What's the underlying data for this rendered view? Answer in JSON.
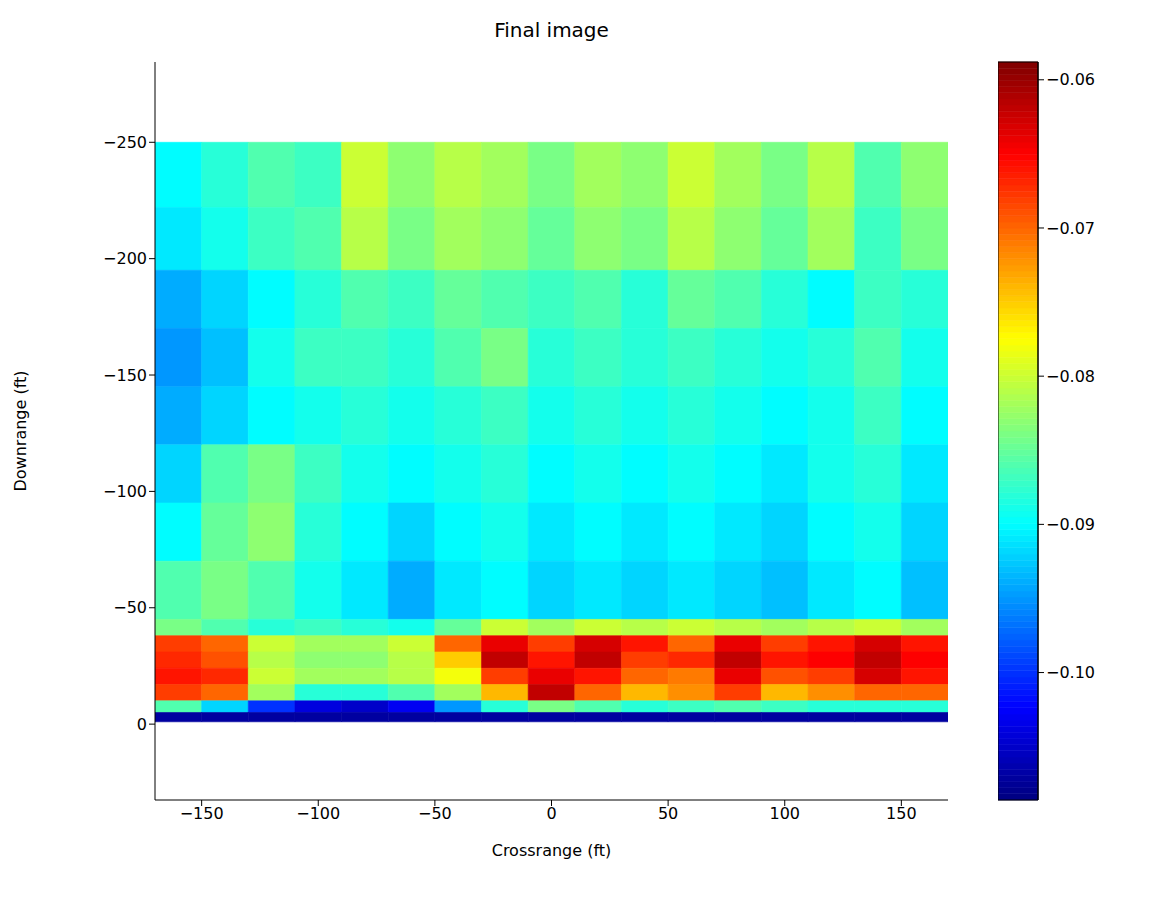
{
  "chart_data": {
    "type": "heatmap",
    "title": "Final image",
    "x_label": "Crossrange (ft)",
    "y_label": "Downrange (ft)",
    "xlim": [
      -170,
      170
    ],
    "ylim": [
      32.6,
      -284.5
    ],
    "xticks": [
      {
        "value": -150,
        "label": "−150"
      },
      {
        "value": -100,
        "label": "−100"
      },
      {
        "value": -50,
        "label": "−50"
      },
      0,
      50,
      100,
      150
    ],
    "yticks": [
      {
        "value": -250,
        "label": "−250"
      },
      {
        "value": -200,
        "label": "−200"
      },
      {
        "value": -150,
        "label": "−150"
      },
      {
        "value": -100,
        "label": "−100"
      },
      {
        "value": -50,
        "label": "−50"
      },
      0
    ],
    "x_edges": [
      -170,
      -150,
      -130,
      -110,
      -90,
      -70,
      -50,
      -30,
      -10,
      10,
      30,
      50,
      70,
      90,
      110,
      130,
      150,
      170
    ],
    "y_edges": [
      -250,
      -222,
      -195,
      -170,
      -145,
      -120,
      -95,
      -70,
      -45,
      -38,
      -31,
      -24,
      -17,
      -10,
      -5,
      -1
    ],
    "cells": [
      [
        -0.09,
        -0.088,
        -0.086,
        -0.087,
        -0.08,
        -0.083,
        -0.081,
        -0.082,
        -0.084,
        -0.082,
        -0.083,
        -0.08,
        -0.082,
        -0.084,
        -0.081,
        -0.086,
        -0.083
      ],
      [
        -0.091,
        -0.089,
        -0.087,
        -0.086,
        -0.081,
        -0.084,
        -0.082,
        -0.083,
        -0.085,
        -0.083,
        -0.084,
        -0.081,
        -0.083,
        -0.085,
        -0.082,
        -0.087,
        -0.084
      ],
      [
        -0.094,
        -0.092,
        -0.09,
        -0.088,
        -0.086,
        -0.087,
        -0.085,
        -0.086,
        -0.087,
        -0.086,
        -0.088,
        -0.085,
        -0.086,
        -0.088,
        -0.09,
        -0.087,
        -0.088
      ],
      [
        -0.095,
        -0.093,
        -0.089,
        -0.087,
        -0.087,
        -0.088,
        -0.086,
        -0.084,
        -0.088,
        -0.087,
        -0.088,
        -0.087,
        -0.088,
        -0.089,
        -0.088,
        -0.086,
        -0.089
      ],
      [
        -0.094,
        -0.092,
        -0.09,
        -0.089,
        -0.088,
        -0.089,
        -0.088,
        -0.087,
        -0.089,
        -0.088,
        -0.089,
        -0.088,
        -0.089,
        -0.09,
        -0.089,
        -0.087,
        -0.09
      ],
      [
        -0.092,
        -0.086,
        -0.084,
        -0.087,
        -0.089,
        -0.09,
        -0.089,
        -0.088,
        -0.09,
        -0.089,
        -0.09,
        -0.089,
        -0.09,
        -0.091,
        -0.089,
        -0.088,
        -0.091
      ],
      [
        -0.09,
        -0.085,
        -0.083,
        -0.088,
        -0.09,
        -0.092,
        -0.09,
        -0.089,
        -0.091,
        -0.09,
        -0.091,
        -0.09,
        -0.091,
        -0.092,
        -0.09,
        -0.089,
        -0.092
      ],
      [
        -0.086,
        -0.084,
        -0.086,
        -0.089,
        -0.091,
        -0.094,
        -0.091,
        -0.09,
        -0.092,
        -0.091,
        -0.092,
        -0.091,
        -0.092,
        -0.093,
        -0.091,
        -0.09,
        -0.093
      ],
      [
        -0.084,
        -0.086,
        -0.088,
        -0.087,
        -0.088,
        -0.089,
        -0.085,
        -0.08,
        -0.082,
        -0.08,
        -0.081,
        -0.08,
        -0.081,
        -0.082,
        -0.081,
        -0.08,
        -0.082
      ],
      [
        -0.068,
        -0.07,
        -0.08,
        -0.082,
        -0.082,
        -0.08,
        -0.07,
        -0.064,
        -0.068,
        -0.063,
        -0.066,
        -0.07,
        -0.064,
        -0.068,
        -0.066,
        -0.063,
        -0.066
      ],
      [
        -0.067,
        -0.069,
        -0.081,
        -0.083,
        -0.083,
        -0.081,
        -0.075,
        -0.062,
        -0.066,
        -0.062,
        -0.068,
        -0.067,
        -0.062,
        -0.066,
        -0.065,
        -0.062,
        -0.065
      ],
      [
        -0.066,
        -0.067,
        -0.08,
        -0.082,
        -0.082,
        -0.081,
        -0.078,
        -0.068,
        -0.064,
        -0.066,
        -0.07,
        -0.071,
        -0.064,
        -0.069,
        -0.068,
        -0.063,
        -0.066
      ],
      [
        -0.068,
        -0.07,
        -0.082,
        -0.088,
        -0.088,
        -0.086,
        -0.082,
        -0.074,
        -0.062,
        -0.07,
        -0.074,
        -0.072,
        -0.068,
        -0.074,
        -0.072,
        -0.07,
        -0.07
      ],
      [
        -0.086,
        -0.092,
        -0.1,
        -0.104,
        -0.105,
        -0.103,
        -0.095,
        -0.088,
        -0.084,
        -0.086,
        -0.088,
        -0.087,
        -0.086,
        -0.087,
        -0.088,
        -0.088,
        -0.088
      ],
      [
        -0.107,
        -0.107,
        -0.107,
        -0.107,
        -0.107,
        -0.107,
        -0.107,
        -0.107,
        -0.107,
        -0.107,
        -0.107,
        -0.107,
        -0.107,
        -0.107,
        -0.107,
        -0.107,
        -0.107
      ]
    ],
    "colorbar_range": [
      -0.1086,
      -0.0588
    ],
    "colorbar_ticks": [
      {
        "value": -0.1,
        "label": "−0.10"
      },
      {
        "value": -0.09,
        "label": "−0.09"
      },
      {
        "value": -0.08,
        "label": "−0.08"
      },
      {
        "value": -0.07,
        "label": "−0.07"
      },
      {
        "value": -0.06,
        "label": "−0.06"
      }
    ]
  }
}
